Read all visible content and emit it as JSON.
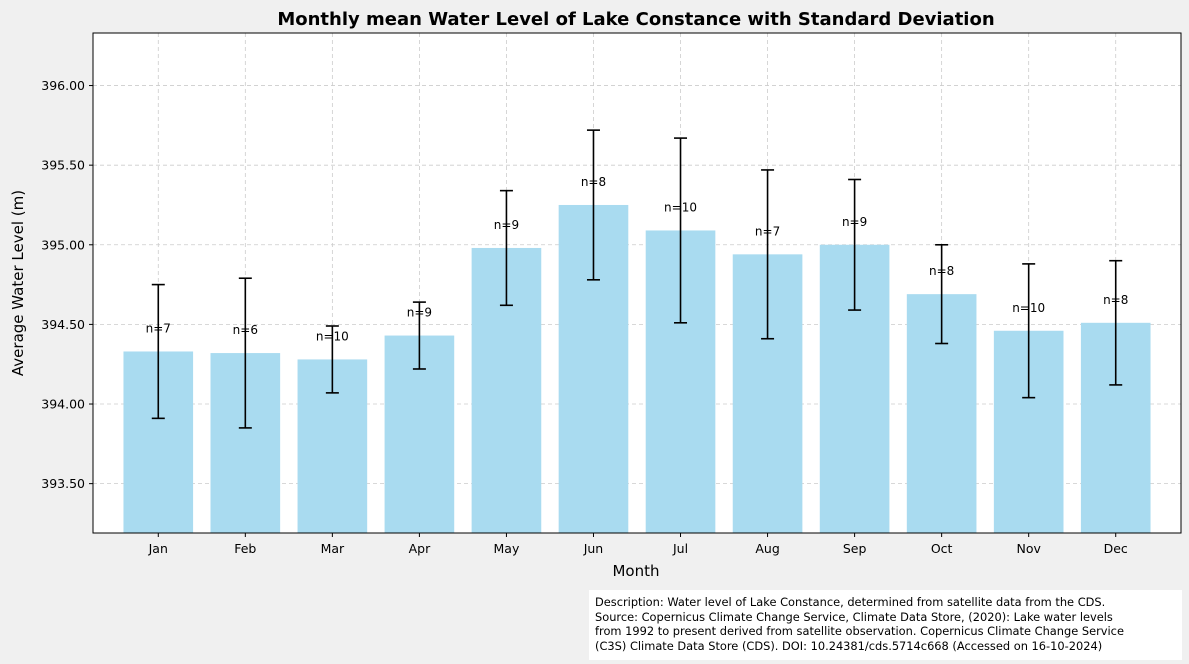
{
  "chart_data": {
    "type": "bar",
    "title": "Monthly mean Water Level of Lake Constance with Standard Deviation",
    "xlabel": "Month",
    "ylabel": "Average Water Level (m)",
    "categories": [
      "Jan",
      "Feb",
      "Mar",
      "Apr",
      "May",
      "Jun",
      "Jul",
      "Aug",
      "Sep",
      "Oct",
      "Nov",
      "Dec"
    ],
    "values": [
      394.33,
      394.32,
      394.28,
      394.43,
      394.98,
      395.25,
      395.09,
      394.94,
      395.0,
      394.69,
      394.46,
      394.51
    ],
    "std": [
      0.42,
      0.47,
      0.21,
      0.21,
      0.36,
      0.47,
      0.58,
      0.53,
      0.41,
      0.31,
      0.42,
      0.39
    ],
    "counts": [
      "n=7",
      "n=6",
      "n=10",
      "n=9",
      "n=9",
      "n=8",
      "n=10",
      "n=7",
      "n=9",
      "n=8",
      "n=10",
      "n=8"
    ],
    "ylim": [
      393.19,
      396.33
    ],
    "yticks": [
      393.5,
      394.0,
      394.5,
      395.0,
      395.5,
      396.0
    ],
    "ytick_labels": [
      "393.50",
      "394.00",
      "394.50",
      "395.00",
      "395.50",
      "396.00"
    ],
    "grid": true,
    "colors": {
      "bar": "#a9dbf0",
      "error": "#000000",
      "grid": "#cccccc"
    }
  },
  "description": "Description: Water level of Lake Constance, determined from satellite data from the CDS.\nSource: Copernicus Climate Change Service, Climate Data Store, (2020): Lake water levels\nfrom 1992 to present derived from satellite observation. Copernicus Climate Change Service\n(C3S) Climate Data Store (CDS). DOI: 10.24381/cds.5714c668 (Accessed on 16-10-2024)"
}
